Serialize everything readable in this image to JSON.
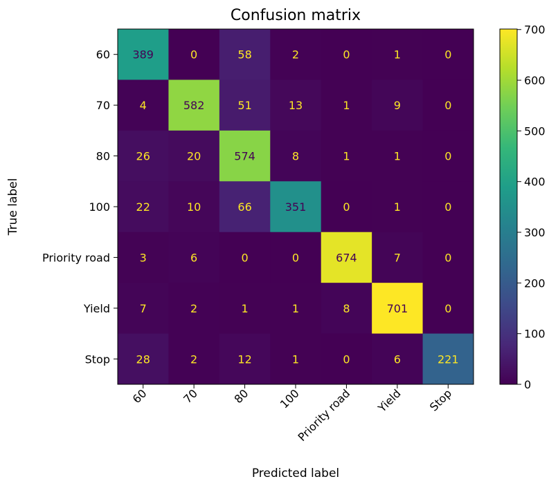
{
  "chart_data": {
    "type": "heatmap",
    "title": "Confusion matrix",
    "xlabel": "Predicted label",
    "ylabel": "True label",
    "x_categories": [
      "60",
      "70",
      "80",
      "100",
      "Priority road",
      "Yield",
      "Stop"
    ],
    "y_categories": [
      "60",
      "70",
      "80",
      "100",
      "Priority road",
      "Yield",
      "Stop"
    ],
    "values": [
      [
        389,
        0,
        58,
        2,
        0,
        1,
        0
      ],
      [
        4,
        582,
        51,
        13,
        1,
        9,
        0
      ],
      [
        26,
        20,
        574,
        8,
        1,
        1,
        0
      ],
      [
        22,
        10,
        66,
        351,
        0,
        1,
        0
      ],
      [
        3,
        6,
        0,
        0,
        674,
        7,
        0
      ],
      [
        7,
        2,
        1,
        1,
        8,
        701,
        0
      ],
      [
        28,
        2,
        12,
        1,
        0,
        6,
        221
      ]
    ],
    "colormap": "viridis",
    "color_range": [
      0,
      701
    ],
    "colorbar_ticks": [
      0,
      100,
      200,
      300,
      400,
      500,
      600,
      700
    ],
    "grid": false
  }
}
